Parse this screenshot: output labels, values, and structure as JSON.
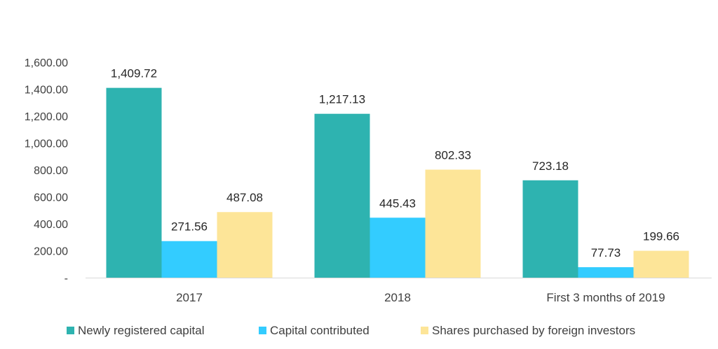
{
  "chart_data": {
    "type": "bar",
    "categories": [
      "2017",
      "2018",
      "First 3 months of 2019"
    ],
    "series": [
      {
        "name": "Newly registered capital",
        "values": [
          1409.72,
          1217.13,
          723.18
        ],
        "value_labels": [
          "1,409.72",
          "1,217.13",
          "723.18"
        ],
        "color": "#2eb3b0"
      },
      {
        "name": "Capital contributed",
        "values": [
          271.56,
          445.43,
          77.73
        ],
        "value_labels": [
          "271.56",
          "445.43",
          "77.73"
        ],
        "color": "#33ccff"
      },
      {
        "name": "Shares purchased by foreign investors",
        "values": [
          487.08,
          802.33,
          199.66
        ],
        "value_labels": [
          "487.08",
          "802.33",
          "199.66"
        ],
        "color": "#fde598"
      }
    ],
    "yticks": [
      0,
      200,
      400,
      600,
      800,
      1000,
      1200,
      1400,
      1600
    ],
    "ytick_labels": [
      "-",
      "200.00",
      "400.00",
      "600.00",
      "800.00",
      "1,000.00",
      "1,200.00",
      "1,400.00",
      "1,600.00"
    ],
    "ylim": [
      0,
      1600
    ],
    "grid": false,
    "legend_position": "bottom",
    "title": "",
    "xlabel": "",
    "ylabel": ""
  }
}
